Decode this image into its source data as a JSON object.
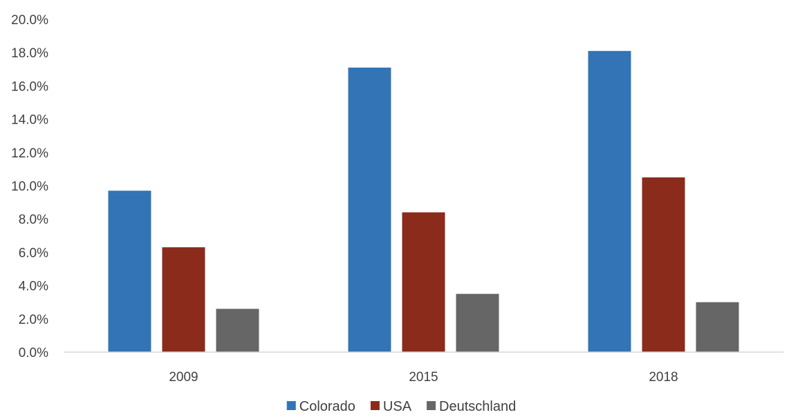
{
  "chart_data": {
    "type": "bar",
    "title": "",
    "xlabel": "",
    "ylabel": "",
    "categories": [
      "2009",
      "2015",
      "2018"
    ],
    "series": [
      {
        "name": "Colorado",
        "color": "#3274B5",
        "values": [
          9.7,
          17.1,
          18.1
        ]
      },
      {
        "name": "USA",
        "color": "#8B2B1B",
        "values": [
          6.3,
          8.4,
          10.5
        ]
      },
      {
        "name": "Deutschland",
        "color": "#666666",
        "values": [
          2.6,
          3.5,
          3.0
        ]
      }
    ],
    "ylim": [
      0,
      20
    ],
    "y_ticks": [
      "0.0%",
      "2.0%",
      "4.0%",
      "6.0%",
      "8.0%",
      "10.0%",
      "12.0%",
      "14.0%",
      "16.0%",
      "18.0%",
      "20.0%"
    ],
    "y_unit": "%",
    "grid": false,
    "legend_position": "bottom-center"
  }
}
